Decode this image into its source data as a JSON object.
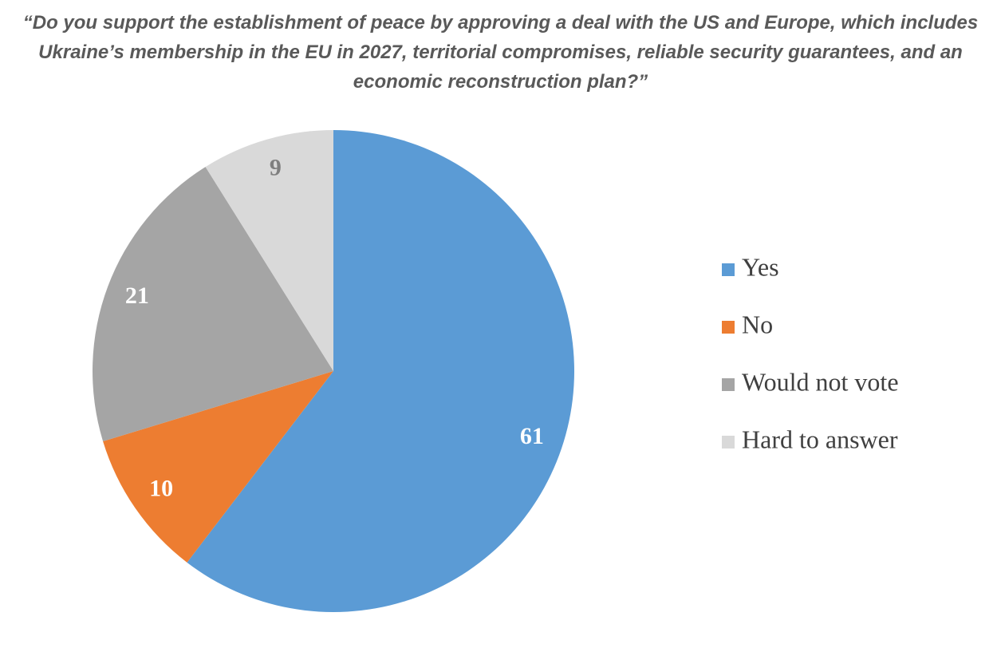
{
  "chart_data": {
    "type": "pie",
    "title": "“Do you support the establishment of peace by approving a deal with the US and Europe, which includes Ukraine’s membership in the EU in 2027, territorial compromises, reliable security guarantees, and an economic reconstruction plan?”",
    "categories": [
      "Yes",
      "No",
      "Would not vote",
      "Hard to answer"
    ],
    "values": [
      61,
      10,
      21,
      9
    ],
    "colors": [
      "#5b9bd5",
      "#ed7d31",
      "#a5a5a5",
      "#d9d9d9"
    ],
    "legend": "right"
  }
}
